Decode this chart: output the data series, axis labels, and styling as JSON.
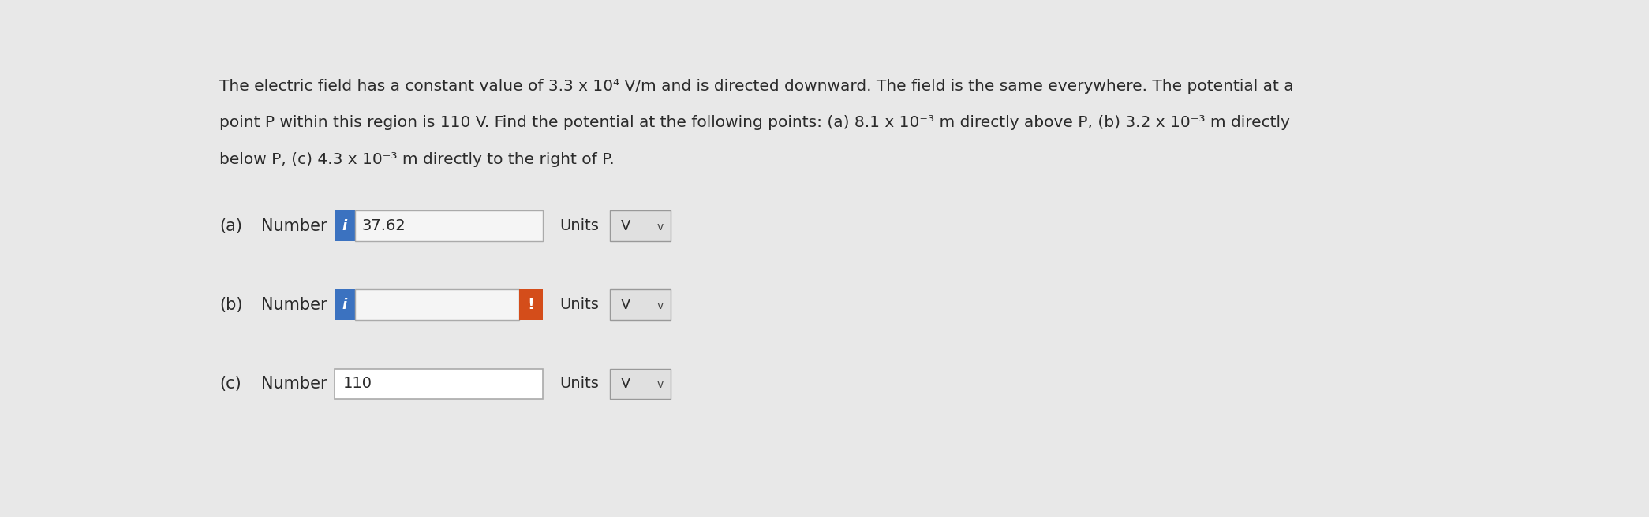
{
  "title_lines": [
    "The electric field has a constant value of 3.3 x 10⁴ V/m and is directed downward. The field is the same everywhere. The potential at a",
    "point P within this region is 110 V. Find the potential at the following points: (a) 8.1 x 10⁻³ m directly above P, (b) 3.2 x 10⁻³ m directly",
    "below P, (c) 4.3 x 10⁻³ m directly to the right of P."
  ],
  "rows": [
    {
      "label": "(a)",
      "has_blue_tag": true,
      "blue_tag_color": "#3b72c0",
      "input_value": "37.62",
      "input_bg": "#f5f5f5",
      "has_red_tag": false,
      "red_tag_color": "#d44d1a",
      "units_label": "Units",
      "units_value": "V"
    },
    {
      "label": "(b)",
      "has_blue_tag": true,
      "blue_tag_color": "#3b72c0",
      "input_value": "",
      "input_bg": "#f5f5f5",
      "has_red_tag": true,
      "red_tag_color": "#d44d1a",
      "units_label": "Units",
      "units_value": "V"
    },
    {
      "label": "(c)",
      "has_blue_tag": false,
      "blue_tag_color": "#3b72c0",
      "input_value": "110",
      "input_bg": "#ffffff",
      "has_red_tag": false,
      "red_tag_color": "#d44d1a",
      "units_label": "Units",
      "units_value": "V"
    }
  ],
  "bg_color": "#e8e8e8",
  "panel_bg": "#ececec",
  "text_color": "#2a2a2a",
  "border_color": "#aaaaaa",
  "title_fontsize": 14.5,
  "label_fontsize": 15,
  "input_fontsize": 14,
  "units_fontsize": 14,
  "drop_fontsize": 13
}
